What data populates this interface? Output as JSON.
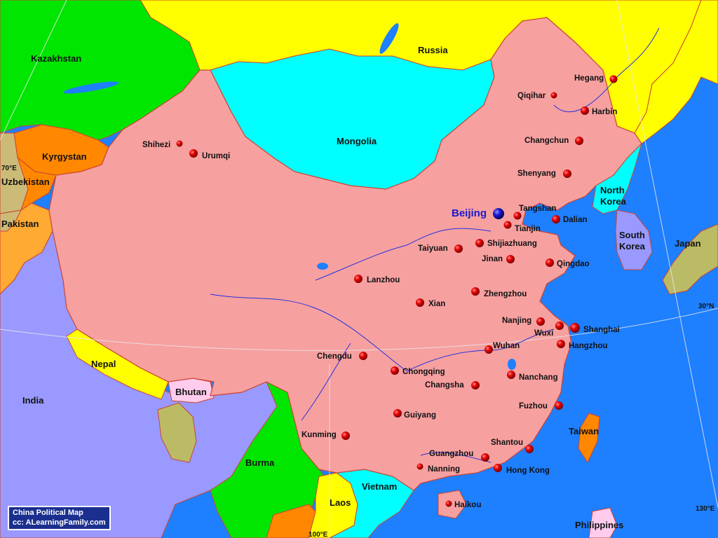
{
  "credit": {
    "title": "China Political Map",
    "source": "cc: ALearningFamily.com"
  },
  "colors": {
    "ocean": "#1e7fff",
    "china": "#f7a0a0",
    "russia": "#ffff00",
    "mongolia": "#00ffff",
    "kazakhstan": "#00e600",
    "india": "#9999ff",
    "capital_marker": "#1a1acc",
    "city_marker": "#e60000"
  },
  "countries": {
    "kazakhstan": "Kazakhstan",
    "russia": "Russia",
    "mongolia": "Mongolia",
    "kyrgyzstan": "Kyrgystan",
    "uzbekistan": "Uzbekistan",
    "pakistan": "Pakistan",
    "north_korea_line1": "North",
    "north_korea_line2": "Korea",
    "south_korea_line1": "South",
    "south_korea_line2": "Korea",
    "japan": "Japan",
    "nepal": "Nepal",
    "bhutan": "Bhutan",
    "india": "India",
    "burma": "Burma",
    "laos": "Laos",
    "vietnam": "Vietnam",
    "taiwan": "Taiwan",
    "philippines": "Philippines"
  },
  "capital": {
    "name": "Beijing"
  },
  "cities": [
    {
      "id": "hegang",
      "name": "Hegang"
    },
    {
      "id": "qiqihar",
      "name": "Qiqihar"
    },
    {
      "id": "harbin",
      "name": "Harbin"
    },
    {
      "id": "changchun",
      "name": "Changchun"
    },
    {
      "id": "shenyang",
      "name": "Shenyang"
    },
    {
      "id": "shihezi",
      "name": "Shihezi"
    },
    {
      "id": "urumqi",
      "name": "Urumqi"
    },
    {
      "id": "tangshan",
      "name": "Tangshan"
    },
    {
      "id": "tianjin",
      "name": "Tianjin"
    },
    {
      "id": "dalian",
      "name": "Dalian"
    },
    {
      "id": "taiyuan",
      "name": "Taiyuan"
    },
    {
      "id": "shijiazhuang",
      "name": "Shijiazhuang"
    },
    {
      "id": "jinan",
      "name": "Jinan"
    },
    {
      "id": "qingdao",
      "name": "Qingdao"
    },
    {
      "id": "lanzhou",
      "name": "Lanzhou"
    },
    {
      "id": "zhengzhou",
      "name": "Zhengzhou"
    },
    {
      "id": "xian",
      "name": "Xian"
    },
    {
      "id": "nanjing",
      "name": "Nanjing"
    },
    {
      "id": "wuxi",
      "name": "Wuxi"
    },
    {
      "id": "shanghai",
      "name": "Shanghai"
    },
    {
      "id": "hangzhou",
      "name": "Hangzhou"
    },
    {
      "id": "wuhan",
      "name": "Wuhan"
    },
    {
      "id": "chengdu",
      "name": "Chengdu"
    },
    {
      "id": "chongqing",
      "name": "Chongqing"
    },
    {
      "id": "nanchang",
      "name": "Nanchang"
    },
    {
      "id": "changsha",
      "name": "Changsha"
    },
    {
      "id": "guiyang",
      "name": "Guiyang"
    },
    {
      "id": "fuzhou",
      "name": "Fuzhou"
    },
    {
      "id": "kunming",
      "name": "Kunming"
    },
    {
      "id": "shantou",
      "name": "Shantou"
    },
    {
      "id": "guangzhou",
      "name": "Guangzhou"
    },
    {
      "id": "nanning",
      "name": "Nanning"
    },
    {
      "id": "hong_kong",
      "name": "Hong Kong"
    },
    {
      "id": "haikou",
      "name": "Haikou"
    }
  ],
  "grid": {
    "lon_70": "70°E",
    "lon_100": "100°E",
    "lon_130": "130°E",
    "lat_30": "30°N"
  }
}
